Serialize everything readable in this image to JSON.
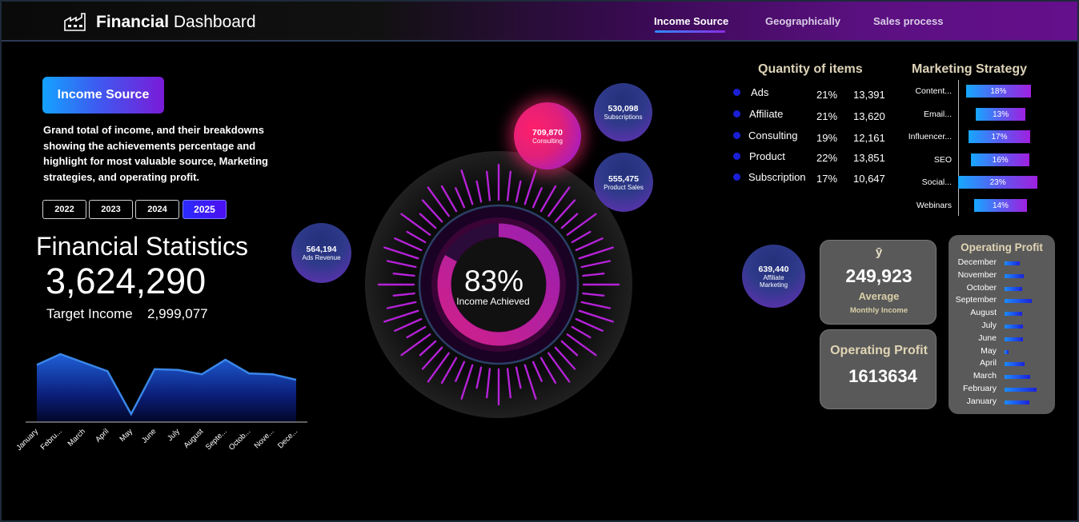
{
  "header": {
    "title_bold": "Financial",
    "title_rest": " Dashboard",
    "tabs": [
      {
        "label": "Income Source",
        "active": true
      },
      {
        "label": "Geographically",
        "active": false
      },
      {
        "label": "Sales process",
        "active": false
      }
    ]
  },
  "income_source": {
    "button_label": "Income Source",
    "description": "Grand total of income, and their breakdowns showing the achievements percentage and highlight for most valuable source, Marketing strategies, and operating profit.",
    "years": [
      "2022",
      "2023",
      "2024",
      "2025"
    ],
    "selected_year": "2025"
  },
  "financial_stats": {
    "title": "Financial Statistics",
    "total": "3,624,290",
    "target_label": "Target Income",
    "target_value": "2,999,077"
  },
  "monthly_income_chart": {
    "type": "area",
    "categories": [
      "January",
      "Febru...",
      "March",
      "April",
      "May",
      "June",
      "July",
      "August",
      "Septe...",
      "Octob...",
      "Nove...",
      "Dece..."
    ],
    "values": [
      320000,
      345000,
      325000,
      305000,
      205000,
      310000,
      308000,
      298000,
      332000,
      300000,
      298000,
      285000
    ],
    "ylim": [
      190000,
      360000
    ]
  },
  "gauge": {
    "percent_label": "83%",
    "percent_value": 83,
    "label": "Income Achieved"
  },
  "bubbles": {
    "consulting": {
      "value": "709,870",
      "label": "Consulting"
    },
    "subscriptions": {
      "value": "530,098",
      "label": "Subscriptions"
    },
    "product_sales": {
      "value": "555,475",
      "label": "Product Sales"
    },
    "ads_revenue": {
      "value": "564,194",
      "label": "Ads Revenue"
    },
    "affiliate_marketing": {
      "value": "639,440",
      "label_line1": "Affiliate",
      "label_line2": "Marketing"
    }
  },
  "quantity": {
    "title": "Quantity of items",
    "rows": [
      {
        "name": "Ads",
        "pct": "21%",
        "qty": "13,391"
      },
      {
        "name": "Affiliate",
        "pct": "21%",
        "qty": "13,620"
      },
      {
        "name": "Consulting",
        "pct": "19%",
        "qty": "12,161"
      },
      {
        "name": "Product",
        "pct": "22%",
        "qty": "13,851"
      },
      {
        "name": "Subscription",
        "pct": "17%",
        "qty": "10,647"
      }
    ]
  },
  "chart_data": {
    "type": "bar",
    "title": "Marketing Strategy",
    "categories": [
      "Content...",
      "Email...",
      "Influencer...",
      "SEO",
      "Social...",
      "Webinars"
    ],
    "values": [
      18,
      13,
      17,
      16,
      23,
      14
    ],
    "value_labels": [
      "18%",
      "13%",
      "17%",
      "16%",
      "23%",
      "14%"
    ],
    "xlim": [
      0,
      23
    ]
  },
  "average": {
    "symbol": "ȳ",
    "value": "249,923",
    "label": "Average",
    "sublabel": "Monthly Income"
  },
  "operating_profit": {
    "label": "Operating Profit",
    "value": "1613634"
  },
  "operating_profit_monthly": {
    "title": "Operating Profit",
    "months": [
      "December",
      "November",
      "October",
      "September",
      "August",
      "July",
      "June",
      "May",
      "April",
      "March",
      "February",
      "January"
    ],
    "values": [
      0.47,
      0.6,
      0.55,
      0.85,
      0.55,
      0.57,
      0.57,
      0.12,
      0.62,
      0.8,
      1.0,
      0.77
    ]
  }
}
